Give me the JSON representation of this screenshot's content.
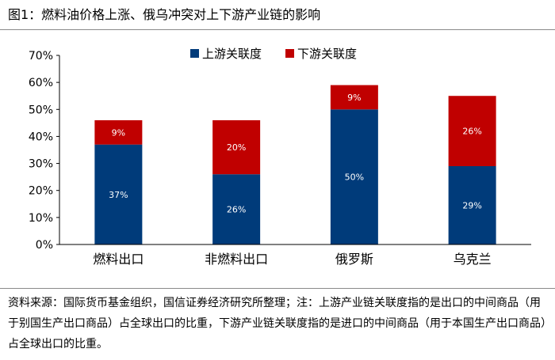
{
  "header": {
    "title": "图1：燃料油价格上涨、俄乌冲突对上下游产业链的影响"
  },
  "footer": {
    "note": "资料来源：国际货币基金组织，国信证券经济研究所整理；注：上游产业链关联度指的是出口的中间商品（用于别国生产出口商品）占全球出口的比重，下游产业链关联度指的是进口的中间商品（用于本国生产出口商品）占全球出口的比重。"
  },
  "chart_data": {
    "type": "bar",
    "stacked": true,
    "categories": [
      "燃料出口",
      "非燃料出口",
      "俄罗斯",
      "乌克兰"
    ],
    "series": [
      {
        "name": "上游关联度",
        "values": [
          37,
          26,
          50,
          29
        ],
        "labels": [
          "37%",
          "26%",
          "50%",
          "29%"
        ],
        "color": "#003b7a"
      },
      {
        "name": "下游关联度",
        "values": [
          9,
          20,
          9,
          26
        ],
        "labels": [
          "9%",
          "20%",
          "9%",
          "26%"
        ],
        "color": "#c00000"
      }
    ],
    "ylim": [
      0,
      70
    ],
    "yticks": [
      "0%",
      "10%",
      "20%",
      "30%",
      "40%",
      "50%",
      "60%",
      "70%"
    ],
    "legend": "top-center",
    "grid": false,
    "title": "",
    "xlabel": "",
    "ylabel": ""
  }
}
